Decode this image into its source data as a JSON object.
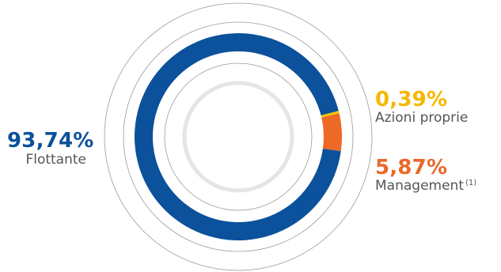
{
  "colors": {
    "flottante": "#0b519b",
    "azioni_proprie": "#f7c300",
    "management": "#ec6a26",
    "ring_lines": "#9a9a9a",
    "inner_ring": "#e3e5e8"
  },
  "labels": {
    "flottante_pct": "93,74%",
    "flottante_name": "Flottante",
    "azioni_pct": "0,39%",
    "azioni_name": "Azioni proprie",
    "management_pct": "5,87%",
    "management_name": "Management",
    "management_note": "(1)"
  },
  "chart_data": {
    "type": "pie",
    "variant": "donut",
    "slices": [
      {
        "name": "Flottante",
        "value": 93.74,
        "color": "#0b519b"
      },
      {
        "name": "Azioni proprie",
        "value": 0.39,
        "color": "#f7c300"
      },
      {
        "name": "Management",
        "value": 5.87,
        "color": "#ec6a26"
      }
    ]
  }
}
